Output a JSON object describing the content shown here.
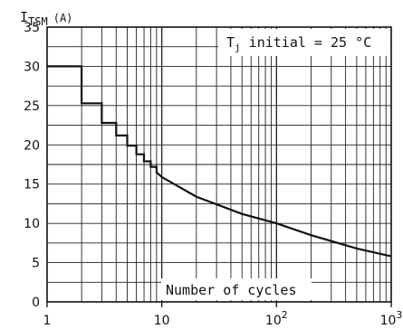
{
  "chart_data": {
    "type": "line",
    "title": "",
    "ylabel_main": "I",
    "ylabel_sub": "TSM",
    "ylabel_unit": "(A)",
    "xlabel": "Number of cycles",
    "xscale": "log",
    "xlim": [
      1,
      1000
    ],
    "ylim": [
      0,
      35
    ],
    "grid": true,
    "annotation": {
      "main": "T",
      "sub": "j",
      "rest": " initial = 25 °C"
    },
    "y_ticks": [
      "0",
      "5",
      "10",
      "15",
      "20",
      "25",
      "30",
      "35"
    ],
    "x_ticks": [
      {
        "value": 1,
        "base": "1",
        "exp": ""
      },
      {
        "value": 10,
        "base": "10",
        "exp": ""
      },
      {
        "value": 100,
        "base": "10",
        "exp": "2"
      },
      {
        "value": 1000,
        "base": "10",
        "exp": "3"
      }
    ],
    "series": [
      {
        "x": [
          1,
          2,
          2,
          3,
          3,
          4,
          4,
          5,
          5,
          6,
          6,
          7,
          7,
          8,
          8,
          9,
          9,
          10,
          20,
          50,
          100,
          200,
          500,
          1000
        ],
        "y": [
          30,
          30,
          25.3,
          25.3,
          22.8,
          22.8,
          21.2,
          21.2,
          19.9,
          19.9,
          18.8,
          18.8,
          17.9,
          17.9,
          17.2,
          17.2,
          16.5,
          15.9,
          13.4,
          11.2,
          10,
          8.5,
          6.8,
          5.8
        ]
      }
    ]
  }
}
